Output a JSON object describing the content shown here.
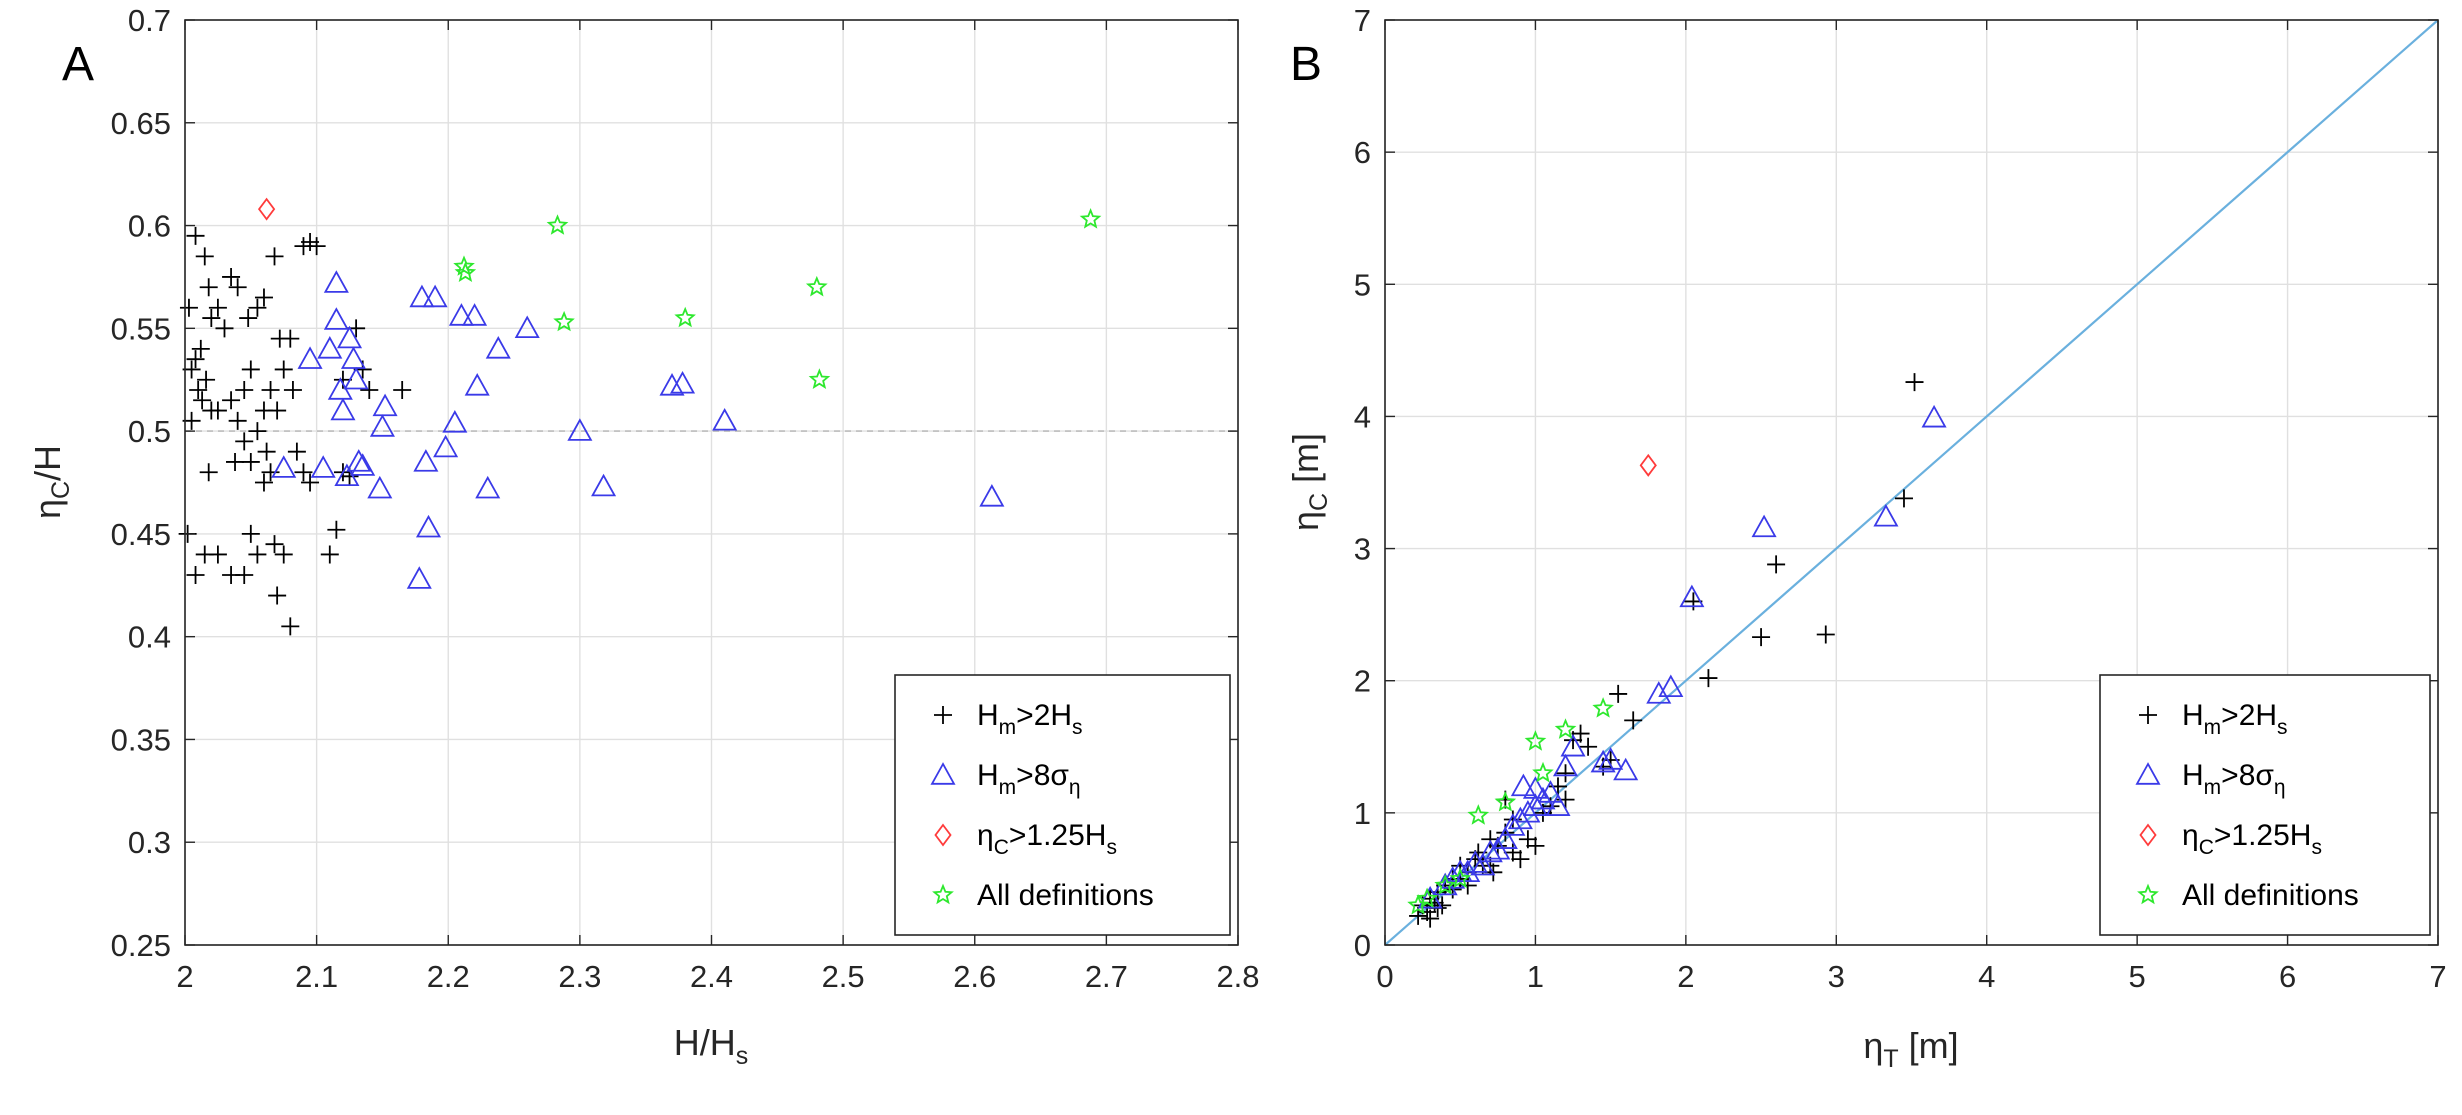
{
  "chart_data": [
    {
      "panel_label": "A",
      "type": "scatter",
      "xlabel": "H/H",
      "xlabel_sub": "s",
      "ylabel_greek": "η",
      "ylabel_sub": "C",
      "ylabel_tail": "/H",
      "xlim": [
        2,
        2.8
      ],
      "ylim": [
        0.25,
        0.7
      ],
      "xticks": [
        "2",
        "2.1",
        "2.2",
        "2.3",
        "2.4",
        "2.5",
        "2.6",
        "2.7",
        "2.8"
      ],
      "yticks": [
        "0.25",
        "0.3",
        "0.35",
        "0.4",
        "0.45",
        "0.5",
        "0.55",
        "0.6",
        "0.65",
        "0.7"
      ],
      "grid": true,
      "reference_line": {
        "y": 0.5,
        "style": "dashed"
      },
      "legend_position": "bottom-right",
      "series": [
        {
          "name": "Hm>2Hs",
          "label_parts": [
            "H",
            "m",
            ">2H",
            "s"
          ],
          "marker": "plus",
          "color": "#000000",
          "points": [
            [
              2.003,
              0.56
            ],
            [
              2.008,
              0.595
            ],
            [
              2.012,
              0.54
            ],
            [
              2.015,
              0.585
            ],
            [
              2.018,
              0.57
            ],
            [
              2.02,
              0.555
            ],
            [
              2.025,
              0.56
            ],
            [
              2.005,
              0.53
            ],
            [
              2.01,
              0.52
            ],
            [
              2.013,
              0.515
            ],
            [
              2.016,
              0.525
            ],
            [
              2.02,
              0.51
            ],
            [
              2.008,
              0.535
            ],
            [
              2.03,
              0.55
            ],
            [
              2.035,
              0.575
            ],
            [
              2.04,
              0.57
            ],
            [
              2.048,
              0.555
            ],
            [
              2.055,
              0.56
            ],
            [
              2.06,
              0.565
            ],
            [
              2.05,
              0.53
            ],
            [
              2.045,
              0.52
            ],
            [
              2.035,
              0.515
            ],
            [
              2.04,
              0.505
            ],
            [
              2.045,
              0.495
            ],
            [
              2.05,
              0.485
            ],
            [
              2.055,
              0.5
            ],
            [
              2.06,
              0.51
            ],
            [
              2.062,
              0.49
            ],
            [
              2.065,
              0.52
            ],
            [
              2.07,
              0.51
            ],
            [
              2.072,
              0.545
            ],
            [
              2.075,
              0.53
            ],
            [
              2.068,
              0.585
            ],
            [
              2.09,
              0.59
            ],
            [
              2.095,
              0.592
            ],
            [
              2.1,
              0.59
            ],
            [
              2.08,
              0.545
            ],
            [
              2.082,
              0.52
            ],
            [
              2.085,
              0.49
            ],
            [
              2.09,
              0.48
            ],
            [
              2.095,
              0.475
            ],
            [
              2.06,
              0.475
            ],
            [
              2.065,
              0.48
            ],
            [
              2.068,
              0.445
            ],
            [
              2.07,
              0.42
            ],
            [
              2.075,
              0.44
            ],
            [
              2.08,
              0.405
            ],
            [
              2.05,
              0.45
            ],
            [
              2.055,
              0.44
            ],
            [
              2.045,
              0.43
            ],
            [
              2.035,
              0.43
            ],
            [
              2.025,
              0.44
            ],
            [
              2.015,
              0.44
            ],
            [
              2.008,
              0.43
            ],
            [
              2.002,
              0.45
            ],
            [
              2.005,
              0.505
            ],
            [
              2.018,
              0.48
            ],
            [
              2.11,
              0.44
            ],
            [
              2.115,
              0.452
            ],
            [
              2.12,
              0.48
            ],
            [
              2.125,
              0.478
            ],
            [
              2.13,
              0.55
            ],
            [
              2.135,
              0.53
            ],
            [
              2.14,
              0.52
            ],
            [
              2.165,
              0.52
            ],
            [
              2.12,
              0.525
            ],
            [
              2.025,
              0.51
            ],
            [
              2.038,
              0.485
            ]
          ]
        },
        {
          "name": "Hm>8ση",
          "label_parts": [
            "H",
            "m",
            ">8σ",
            "η"
          ],
          "marker": "triangle",
          "color": "#3a3ae8",
          "points": [
            [
              2.075,
              0.482
            ],
            [
              2.095,
              0.535
            ],
            [
              2.105,
              0.482
            ],
            [
              2.11,
              0.54
            ],
            [
              2.115,
              0.572
            ],
            [
              2.115,
              0.554
            ],
            [
              2.118,
              0.52
            ],
            [
              2.12,
              0.51
            ],
            [
              2.123,
              0.478
            ],
            [
              2.125,
              0.545
            ],
            [
              2.128,
              0.535
            ],
            [
              2.13,
              0.525
            ],
            [
              2.132,
              0.485
            ],
            [
              2.135,
              0.483
            ],
            [
              2.148,
              0.472
            ],
            [
              2.15,
              0.502
            ],
            [
              2.152,
              0.512
            ],
            [
              2.178,
              0.428
            ],
            [
              2.18,
              0.565
            ],
            [
              2.183,
              0.485
            ],
            [
              2.185,
              0.453
            ],
            [
              2.19,
              0.565
            ],
            [
              2.198,
              0.492
            ],
            [
              2.205,
              0.504
            ],
            [
              2.21,
              0.556
            ],
            [
              2.22,
              0.556
            ],
            [
              2.222,
              0.522
            ],
            [
              2.23,
              0.472
            ],
            [
              2.238,
              0.54
            ],
            [
              2.26,
              0.55
            ],
            [
              2.3,
              0.5
            ],
            [
              2.318,
              0.473
            ],
            [
              2.37,
              0.522
            ],
            [
              2.378,
              0.523
            ],
            [
              2.41,
              0.505
            ],
            [
              2.613,
              0.468
            ]
          ]
        },
        {
          "name": "ηC>1.25Hs",
          "label_parts": [
            "η",
            "C",
            ">1.25H",
            "s"
          ],
          "marker": "diamond",
          "color": "#ff3b3b",
          "points": [
            [
              2.062,
              0.608
            ]
          ]
        },
        {
          "name": "All definitions",
          "label_parts": [
            "All definitions"
          ],
          "marker": "star",
          "color": "#2ee82e",
          "points": [
            [
              2.212,
              0.58
            ],
            [
              2.213,
              0.577
            ],
            [
              2.283,
              0.6
            ],
            [
              2.288,
              0.553
            ],
            [
              2.38,
              0.555
            ],
            [
              2.48,
              0.57
            ],
            [
              2.482,
              0.525
            ],
            [
              2.688,
              0.603
            ]
          ]
        }
      ]
    },
    {
      "panel_label": "B",
      "type": "scatter",
      "xlabel_greek": "η",
      "xlabel_sub": "T",
      "xlabel_tail": " [m]",
      "ylabel_greek": "η",
      "ylabel_sub": "C",
      "ylabel_tail": " [m]",
      "xlim": [
        0,
        7
      ],
      "ylim": [
        0,
        7
      ],
      "xticks": [
        "0",
        "1",
        "2",
        "3",
        "4",
        "5",
        "6",
        "7"
      ],
      "yticks": [
        "0",
        "1",
        "2",
        "3",
        "4",
        "5",
        "6",
        "7"
      ],
      "grid": true,
      "reference_line": {
        "from": [
          0,
          0
        ],
        "to": [
          7,
          7
        ],
        "color": "#6ab0de"
      },
      "legend_position": "bottom-right",
      "series": [
        {
          "name": "Hm>2Hs",
          "label_parts": [
            "H",
            "m",
            ">2H",
            "s"
          ],
          "marker": "plus",
          "color": "#000000",
          "points": [
            [
              0.22,
              0.22
            ],
            [
              0.25,
              0.3
            ],
            [
              0.28,
              0.25
            ],
            [
              0.3,
              0.35
            ],
            [
              0.33,
              0.32
            ],
            [
              0.35,
              0.4
            ],
            [
              0.38,
              0.3
            ],
            [
              0.4,
              0.45
            ],
            [
              0.45,
              0.42
            ],
            [
              0.5,
              0.5
            ],
            [
              0.55,
              0.55
            ],
            [
              0.5,
              0.6
            ],
            [
              0.6,
              0.65
            ],
            [
              0.62,
              0.7
            ],
            [
              0.65,
              0.6
            ],
            [
              0.7,
              0.8
            ],
            [
              0.75,
              0.75
            ],
            [
              0.8,
              0.85
            ],
            [
              0.85,
              0.95
            ],
            [
              0.9,
              0.65
            ],
            [
              0.95,
              0.8
            ],
            [
              1.0,
              0.75
            ],
            [
              1.05,
              1.0
            ],
            [
              1.1,
              1.05
            ],
            [
              1.15,
              1.2
            ],
            [
              1.2,
              1.1
            ],
            [
              1.25,
              1.55
            ],
            [
              1.3,
              1.6
            ],
            [
              1.35,
              1.5
            ],
            [
              1.45,
              1.35
            ],
            [
              1.5,
              1.4
            ],
            [
              1.55,
              1.9
            ],
            [
              1.65,
              1.7
            ],
            [
              2.05,
              2.6
            ],
            [
              2.15,
              2.02
            ],
            [
              2.5,
              2.33
            ],
            [
              2.6,
              2.88
            ],
            [
              2.93,
              2.35
            ],
            [
              3.45,
              3.38
            ],
            [
              3.52,
              4.26
            ],
            [
              0.72,
              0.55
            ],
            [
              0.85,
              0.7
            ],
            [
              0.3,
              0.2
            ],
            [
              0.35,
              0.28
            ],
            [
              0.45,
              0.5
            ],
            [
              0.55,
              0.45
            ],
            [
              0.7,
              0.6
            ],
            [
              0.8,
              1.1
            ],
            [
              1.2,
              1.3
            ]
          ]
        },
        {
          "name": "Hm>8ση",
          "label_parts": [
            "H",
            "m",
            ">8σ",
            "η"
          ],
          "marker": "triangle",
          "color": "#3a3ae8",
          "points": [
            [
              0.3,
              0.35
            ],
            [
              0.4,
              0.45
            ],
            [
              0.45,
              0.5
            ],
            [
              0.5,
              0.55
            ],
            [
              0.55,
              0.55
            ],
            [
              0.6,
              0.62
            ],
            [
              0.65,
              0.6
            ],
            [
              0.7,
              0.7
            ],
            [
              0.75,
              0.72
            ],
            [
              0.8,
              0.8
            ],
            [
              0.85,
              0.9
            ],
            [
              0.9,
              0.95
            ],
            [
              0.95,
              1.0
            ],
            [
              1.0,
              1.05
            ],
            [
              1.05,
              1.1
            ],
            [
              1.1,
              1.15
            ],
            [
              1.15,
              1.05
            ],
            [
              0.92,
              1.2
            ],
            [
              1.0,
              1.18
            ],
            [
              1.2,
              1.35
            ],
            [
              1.25,
              1.5
            ],
            [
              1.45,
              1.38
            ],
            [
              1.5,
              1.4
            ],
            [
              1.6,
              1.32
            ],
            [
              1.82,
              1.9
            ],
            [
              1.9,
              1.95
            ],
            [
              2.04,
              2.63
            ],
            [
              2.52,
              3.16
            ],
            [
              3.33,
              3.24
            ],
            [
              3.65,
              3.99
            ]
          ]
        },
        {
          "name": "ηC>1.25Hs",
          "label_parts": [
            "η",
            "C",
            ">1.25H",
            "s"
          ],
          "marker": "diamond",
          "color": "#ff3b3b",
          "points": [
            [
              1.75,
              3.63
            ]
          ]
        },
        {
          "name": "All definitions",
          "label_parts": [
            "All definitions"
          ],
          "marker": "star",
          "color": "#2ee82e",
          "points": [
            [
              0.22,
              0.3
            ],
            [
              0.28,
              0.35
            ],
            [
              0.4,
              0.45
            ],
            [
              0.5,
              0.5
            ],
            [
              0.62,
              0.98
            ],
            [
              0.8,
              1.08
            ],
            [
              1.05,
              1.3
            ],
            [
              1.0,
              1.54
            ],
            [
              1.2,
              1.63
            ],
            [
              1.45,
              1.79
            ]
          ]
        }
      ]
    }
  ]
}
